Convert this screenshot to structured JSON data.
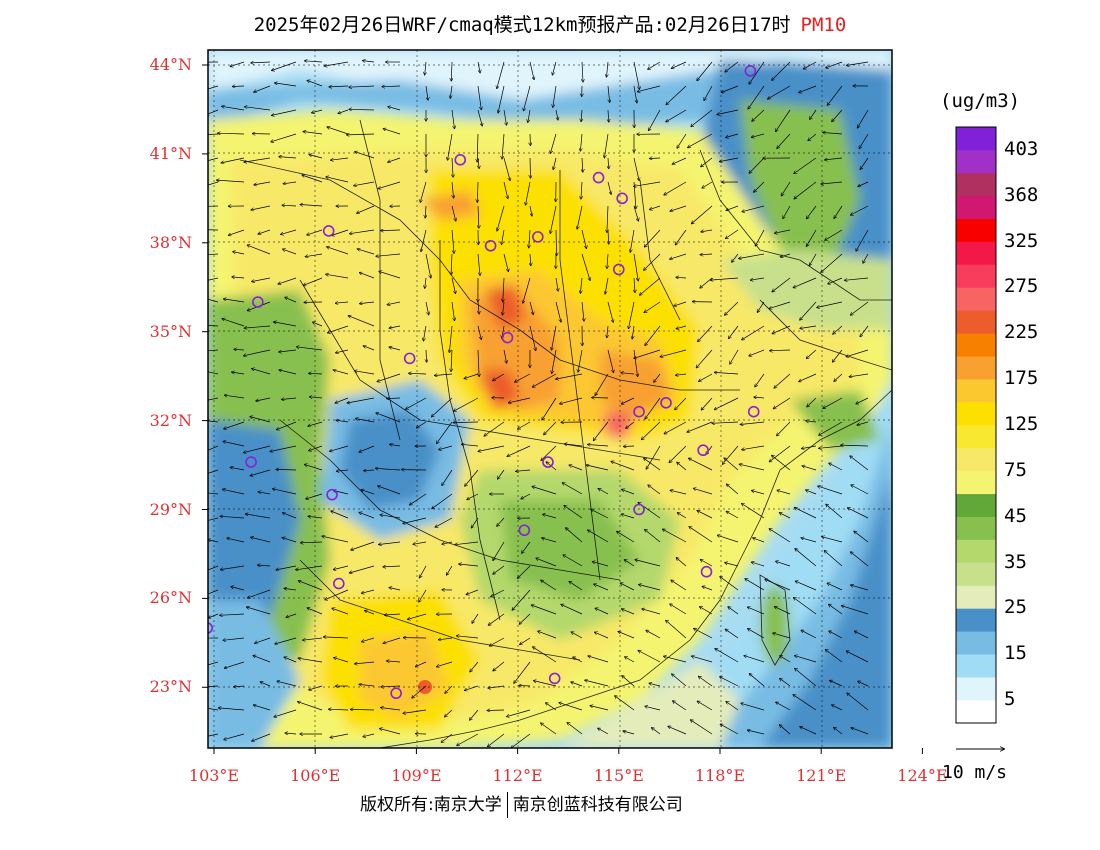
{
  "title": {
    "main": "2025年02月26日WRF/cmaq模式12km预报产品:02月26日17时",
    "pollutant": "PM10"
  },
  "map": {
    "lat_labels": [
      {
        "value": 44,
        "text": "44°N"
      },
      {
        "value": 41,
        "text": "41°N"
      },
      {
        "value": 38,
        "text": "38°N"
      },
      {
        "value": 35,
        "text": "35°N"
      },
      {
        "value": 32,
        "text": "32°N"
      },
      {
        "value": 29,
        "text": "29°N"
      },
      {
        "value": 26,
        "text": "26°N"
      },
      {
        "value": 23,
        "text": "23°N"
      }
    ],
    "lon_labels": [
      {
        "value": 103,
        "text": "103°E"
      },
      {
        "value": 106,
        "text": "106°E"
      },
      {
        "value": 109,
        "text": "109°E"
      },
      {
        "value": 112,
        "text": "112°E"
      },
      {
        "value": 115,
        "text": "115°E"
      },
      {
        "value": 118,
        "text": "118°E"
      },
      {
        "value": 121,
        "text": "121°E"
      },
      {
        "value": 124,
        "text": "124°E"
      }
    ],
    "extent": {
      "lon_min": 102.8,
      "lon_max": 124.0,
      "lat_min": 21.0,
      "lat_max": 44.5
    },
    "cities": [
      {
        "lon": 118.9,
        "lat": 43.8
      },
      {
        "lon": 110.3,
        "lat": 40.8
      },
      {
        "lon": 114.4,
        "lat": 40.2
      },
      {
        "lon": 115.1,
        "lat": 39.5
      },
      {
        "lon": 106.4,
        "lat": 38.4
      },
      {
        "lon": 111.2,
        "lat": 37.9
      },
      {
        "lon": 112.6,
        "lat": 38.2
      },
      {
        "lon": 115.0,
        "lat": 37.1
      },
      {
        "lon": 104.3,
        "lat": 36.0
      },
      {
        "lon": 111.7,
        "lat": 34.8
      },
      {
        "lon": 108.8,
        "lat": 34.1
      },
      {
        "lon": 116.4,
        "lat": 32.6
      },
      {
        "lon": 115.6,
        "lat": 32.3
      },
      {
        "lon": 119.0,
        "lat": 32.3
      },
      {
        "lon": 117.5,
        "lat": 31.0
      },
      {
        "lon": 104.1,
        "lat": 30.6
      },
      {
        "lon": 112.9,
        "lat": 30.6
      },
      {
        "lon": 106.5,
        "lat": 29.5
      },
      {
        "lon": 115.6,
        "lat": 29.0
      },
      {
        "lon": 112.2,
        "lat": 28.3
      },
      {
        "lon": 117.6,
        "lat": 26.9
      },
      {
        "lon": 106.7,
        "lat": 26.5
      },
      {
        "lon": 102.8,
        "lat": 25.0
      },
      {
        "lon": 113.1,
        "lat": 23.3
      },
      {
        "lon": 108.4,
        "lat": 22.8
      }
    ]
  },
  "colorbar": {
    "unit": "(ug/m3)",
    "colors": [
      "#ffffff",
      "#e0f4fc",
      "#a0dcf4",
      "#78bce4",
      "#4a90c8",
      "#e4ecbc",
      "#c8e08c",
      "#b4d86c",
      "#88c050",
      "#62a838",
      "#f4f470",
      "#f8e868",
      "#f8e830",
      "#fce000",
      "#fcc830",
      "#f8a030",
      "#f88000",
      "#ec5c2c",
      "#f86464",
      "#f83c5c",
      "#f41848",
      "#f80000",
      "#d01870",
      "#b03060",
      "#a030c8",
      "#8020d8"
    ],
    "labels": [
      "5",
      "15",
      "25",
      "35",
      "45",
      "75",
      "125",
      "175",
      "225",
      "275",
      "325",
      "368",
      "403"
    ]
  },
  "wind": {
    "reference_label": "10 m/s"
  },
  "copyright": {
    "left": "版权所有:南京大学",
    "right": "南京创蓝科技有限公司"
  }
}
